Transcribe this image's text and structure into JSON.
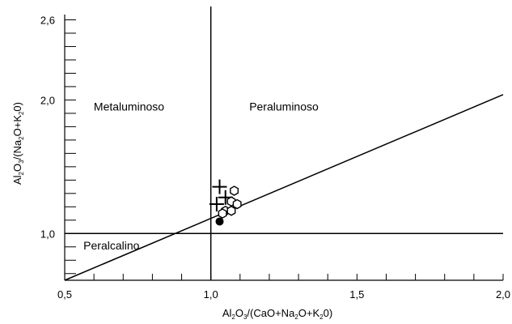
{
  "chart_data": {
    "type": "scatter",
    "x_axis": {
      "range": [
        0.5,
        2.0
      ],
      "tick_labels": [
        {
          "value": 0.5,
          "label": "0,5"
        },
        {
          "value": 1.0,
          "label": "1,0"
        },
        {
          "value": 1.5,
          "label": "1,5"
        },
        {
          "value": 2.0,
          "label": "2,0"
        }
      ],
      "minor_step": 0.1,
      "title_parts": [
        "Al",
        "2",
        "O",
        "3",
        "/(CaO+Na",
        "2",
        "O+K",
        "2",
        "0)"
      ]
    },
    "y_axis": {
      "range": [
        0.65,
        2.7
      ],
      "tick_labels": [
        {
          "value": 1.0,
          "label": "1,0"
        },
        {
          "value": 2.0,
          "label": "2,0"
        },
        {
          "value": 2.6,
          "label": "2,6"
        }
      ],
      "minor_step": 0.1,
      "title_parts": [
        "Al",
        "2",
        "O",
        "3",
        "/(Na",
        "2",
        "O+K",
        "2",
        "0)"
      ]
    },
    "regions": [
      {
        "name": "Metaluminoso",
        "x": 0.72,
        "y": 1.92
      },
      {
        "name": "Peraluminoso",
        "x": 1.25,
        "y": 1.92
      },
      {
        "name": "Peralcalino",
        "x": 0.66,
        "y": 0.88
      }
    ],
    "boundaries": [
      {
        "name": "vertical",
        "points": [
          [
            1.0,
            0.65
          ],
          [
            1.0,
            2.7
          ]
        ]
      },
      {
        "name": "horizontal",
        "points": [
          [
            0.5,
            1.0
          ],
          [
            2.0,
            1.0
          ]
        ]
      },
      {
        "name": "diagonal",
        "points": [
          [
            0.5,
            0.65
          ],
          [
            2.0,
            2.04
          ]
        ]
      }
    ],
    "series": [
      {
        "marker": "cross",
        "points": [
          [
            1.03,
            1.35
          ],
          [
            1.05,
            1.27
          ],
          [
            1.02,
            1.22
          ]
        ]
      },
      {
        "marker": "open-hexagon",
        "points": [
          [
            1.08,
            1.32
          ],
          [
            1.07,
            1.24
          ],
          [
            1.09,
            1.22
          ],
          [
            1.05,
            1.17
          ],
          [
            1.04,
            1.15
          ],
          [
            1.07,
            1.17
          ]
        ]
      },
      {
        "marker": "filled-circle",
        "points": [
          [
            1.03,
            1.09
          ]
        ]
      }
    ]
  }
}
